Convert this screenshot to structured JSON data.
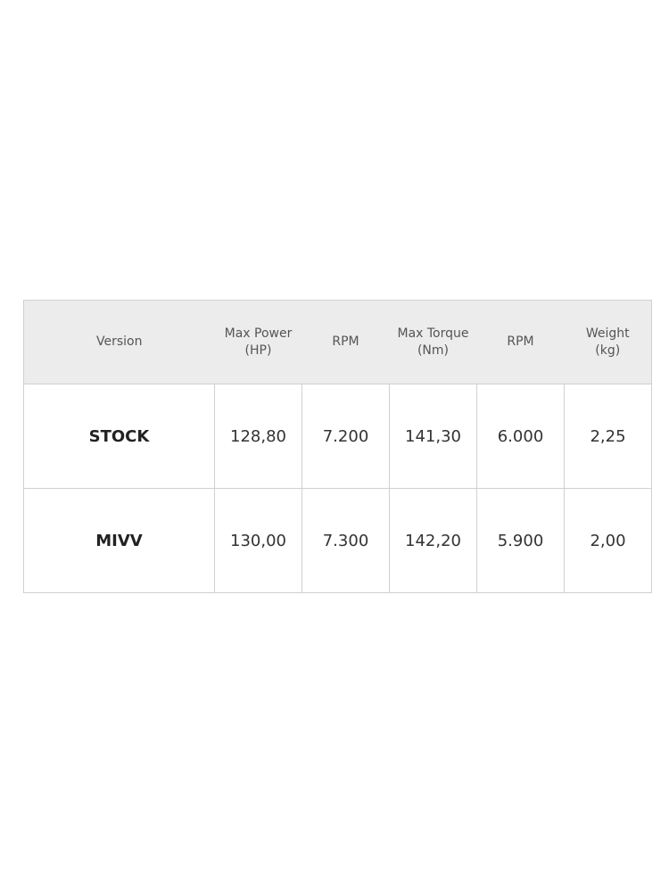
{
  "table": {
    "headers": [
      [
        "Version"
      ],
      [
        "Max Power",
        "(HP)"
      ],
      [
        "RPM"
      ],
      [
        "Max Torque",
        "(Nm)"
      ],
      [
        "RPM"
      ],
      [
        "Weight",
        "(kg)"
      ]
    ],
    "rows": [
      [
        "STOCK",
        "128,80",
        "7.200",
        "141,30",
        "6.000",
        "2,25"
      ],
      [
        "MIVV",
        "130,00",
        "7.300",
        "142,20",
        "5.900",
        "2,00"
      ]
    ]
  }
}
